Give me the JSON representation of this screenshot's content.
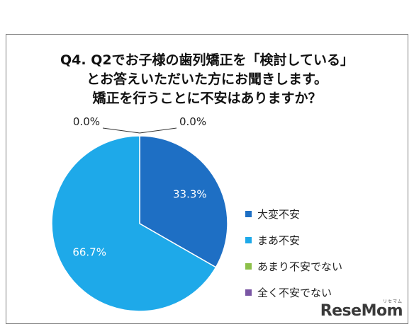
{
  "title_lines": [
    "Q4.  Q2でお子様の歯列矯正を「検討している」",
    "とお答えいただいた方にお聞きします。",
    "矯正を行うことに不安はありますか？"
  ],
  "chart_data": {
    "type": "pie",
    "title": "Q4.  Q2でお子様の歯列矯正を「検討している」 とお答えいただいた方にお聞きします。 矯正を行うことに不安はありますか？",
    "slices": [
      {
        "label": "大変不安",
        "value": 33.3,
        "display": "33.3%",
        "color": "#1e6fc4"
      },
      {
        "label": "まあ不安",
        "value": 66.7,
        "display": "66.7%",
        "color": "#1ea9e9"
      },
      {
        "label": "あまり不安でない",
        "value": 0.0,
        "display": "0.0%",
        "color": "#8dc04a"
      },
      {
        "label": "全く不安でない",
        "value": 0.0,
        "display": "0.0%",
        "color": "#7a56a4"
      }
    ],
    "start_angle": "12 o'clock",
    "direction": "clockwise",
    "legend_position": "right"
  },
  "logo": {
    "text": "ReseMom",
    "kana": "リセマム"
  }
}
